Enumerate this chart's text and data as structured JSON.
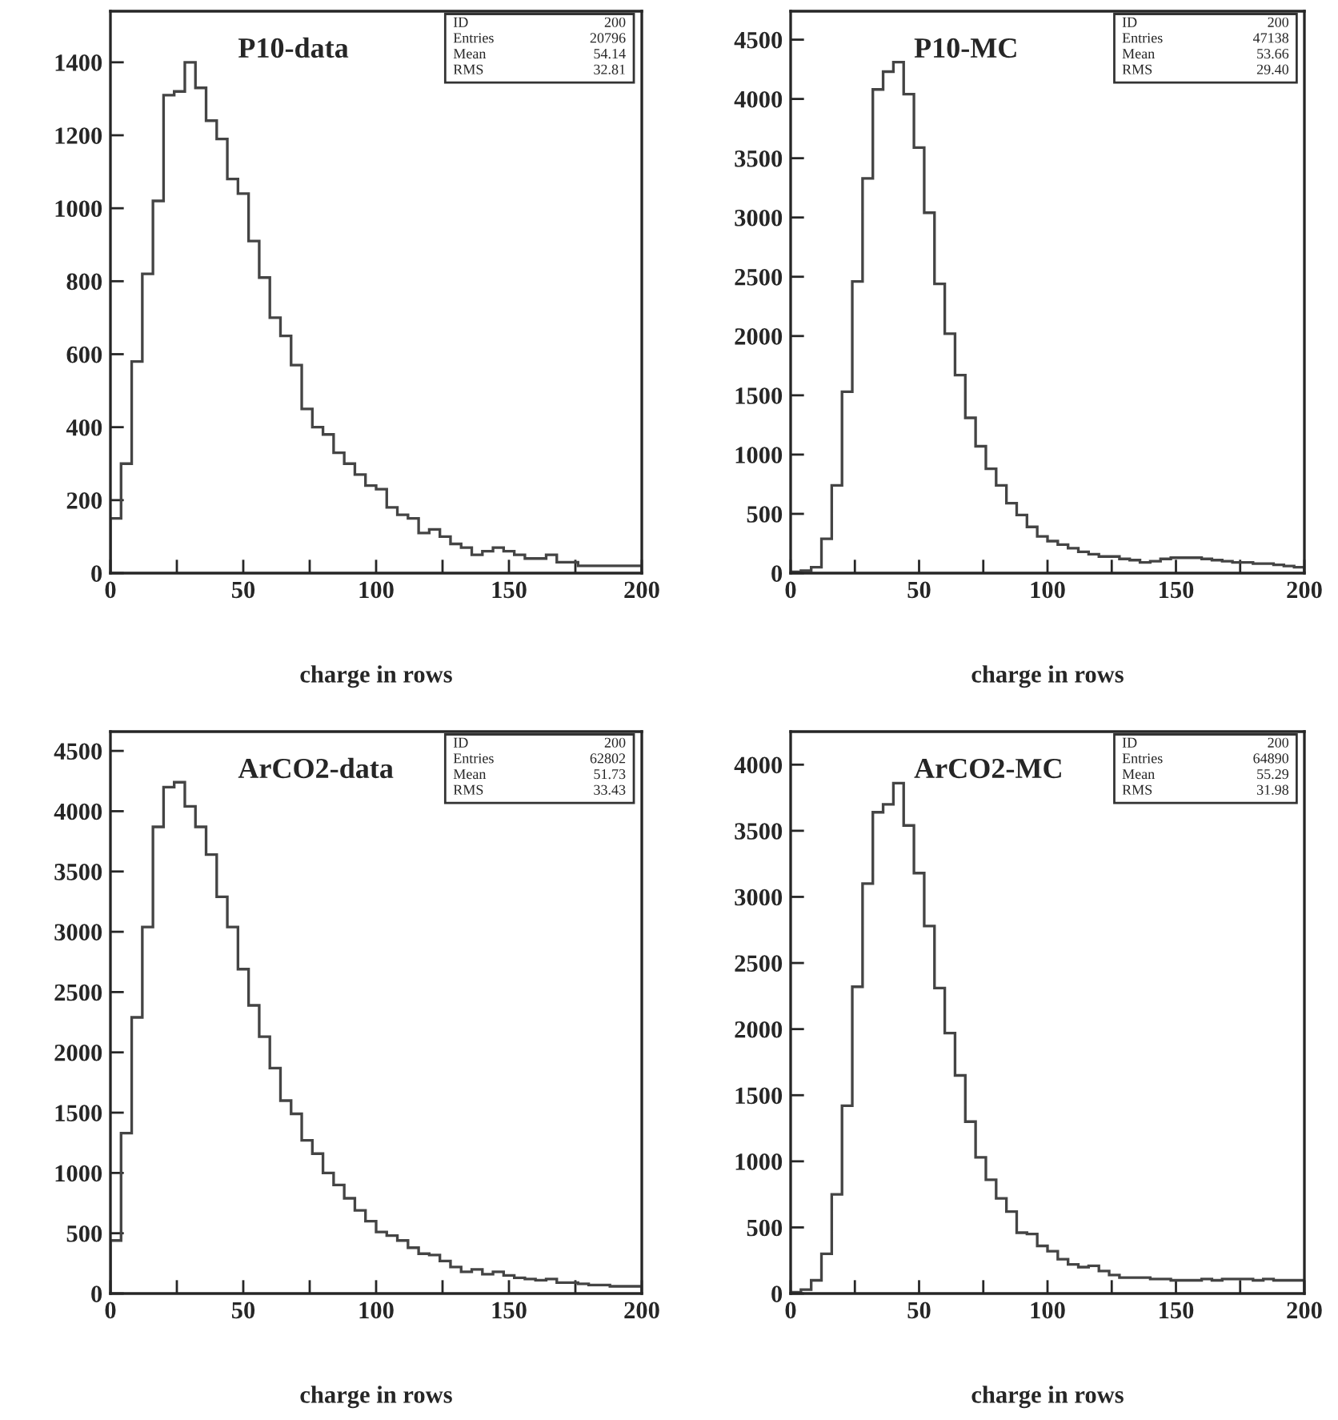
{
  "chart_data": [
    {
      "type": "histogram",
      "title": "P10-data",
      "xlabel": "charge in rows",
      "color": "#444444",
      "bins": [
        0,
        4,
        8,
        12,
        16,
        20,
        24,
        28,
        32,
        36,
        40,
        44,
        48,
        52,
        56,
        60,
        64,
        68,
        72,
        76,
        80,
        84,
        88,
        92,
        96,
        100,
        104,
        108,
        112,
        116,
        120,
        124,
        128,
        132,
        136,
        140,
        144,
        148,
        152,
        156,
        160,
        164,
        168,
        172,
        176,
        180,
        184,
        188,
        192,
        196,
        200
      ],
      "values": [
        150,
        300,
        580,
        820,
        1020,
        1310,
        1320,
        1400,
        1330,
        1240,
        1190,
        1080,
        1040,
        910,
        810,
        700,
        650,
        570,
        450,
        400,
        380,
        330,
        300,
        270,
        240,
        230,
        180,
        160,
        150,
        110,
        120,
        100,
        80,
        70,
        50,
        60,
        70,
        60,
        50,
        40,
        40,
        50,
        30,
        30,
        20,
        20,
        20,
        20,
        20,
        20
      ],
      "xlim": [
        0,
        200
      ],
      "ylim": [
        0,
        1540
      ],
      "xticks": [
        0,
        {
          "value": 25,
          "label": null
        },
        50,
        {
          "value": 75,
          "label": null
        },
        100,
        {
          "value": 125,
          "label": null
        },
        150,
        {
          "value": 175,
          "label": null
        },
        200
      ],
      "yticks": [
        0,
        200,
        400,
        600,
        800,
        1000,
        1200,
        1400
      ],
      "annotations": [
        "ID 200",
        "Entries 20796",
        "Mean 54.14",
        "RMS 32.81"
      ]
    },
    {
      "type": "histogram",
      "title": "P10-MC",
      "xlabel": "charge in rows",
      "color": "#444444",
      "bins": [
        0,
        4,
        8,
        12,
        16,
        20,
        24,
        28,
        32,
        36,
        40,
        44,
        48,
        52,
        56,
        60,
        64,
        68,
        72,
        76,
        80,
        84,
        88,
        92,
        96,
        100,
        104,
        108,
        112,
        116,
        120,
        124,
        128,
        132,
        136,
        140,
        144,
        148,
        152,
        156,
        160,
        164,
        168,
        172,
        176,
        180,
        184,
        188,
        192,
        196,
        200
      ],
      "values": [
        10,
        20,
        50,
        290,
        740,
        1530,
        2460,
        3330,
        4080,
        4230,
        4310,
        4040,
        3590,
        3040,
        2440,
        2020,
        1670,
        1310,
        1070,
        880,
        740,
        590,
        490,
        390,
        310,
        270,
        240,
        210,
        180,
        160,
        140,
        140,
        120,
        110,
        90,
        100,
        120,
        130,
        130,
        130,
        120,
        110,
        100,
        90,
        90,
        80,
        80,
        70,
        60,
        50
      ],
      "xlim": [
        0,
        200
      ],
      "ylim": [
        0,
        4740
      ],
      "xticks": [
        0,
        {
          "value": 25,
          "label": null
        },
        50,
        {
          "value": 75,
          "label": null
        },
        100,
        {
          "value": 125,
          "label": null
        },
        150,
        {
          "value": 175,
          "label": null
        },
        200
      ],
      "yticks": [
        0,
        500,
        1000,
        1500,
        2000,
        2500,
        3000,
        3500,
        4000,
        4500
      ],
      "annotations": [
        "ID 200",
        "Entries 47138",
        "Mean 53.66",
        "RMS 29.40"
      ]
    },
    {
      "type": "histogram",
      "title": "ArCO2-data",
      "xlabel": "charge in rows",
      "color": "#444444",
      "bins": [
        0,
        4,
        8,
        12,
        16,
        20,
        24,
        28,
        32,
        36,
        40,
        44,
        48,
        52,
        56,
        60,
        64,
        68,
        72,
        76,
        80,
        84,
        88,
        92,
        96,
        100,
        104,
        108,
        112,
        116,
        120,
        124,
        128,
        132,
        136,
        140,
        144,
        148,
        152,
        156,
        160,
        164,
        168,
        172,
        176,
        180,
        184,
        188,
        192,
        196,
        200
      ],
      "values": [
        440,
        1330,
        2290,
        3040,
        3870,
        4200,
        4240,
        4040,
        3870,
        3640,
        3290,
        3040,
        2690,
        2390,
        2130,
        1870,
        1600,
        1490,
        1270,
        1160,
        1000,
        900,
        790,
        690,
        600,
        510,
        480,
        440,
        380,
        330,
        320,
        270,
        220,
        180,
        200,
        160,
        180,
        150,
        130,
        120,
        110,
        120,
        90,
        90,
        80,
        70,
        70,
        60,
        60,
        60
      ],
      "xlim": [
        0,
        200
      ],
      "ylim": [
        0,
        4660
      ],
      "xticks": [
        0,
        {
          "value": 25,
          "label": null
        },
        50,
        {
          "value": 75,
          "label": null
        },
        100,
        {
          "value": 125,
          "label": null
        },
        150,
        {
          "value": 175,
          "label": null
        },
        200
      ],
      "yticks": [
        0,
        500,
        1000,
        1500,
        2000,
        2500,
        3000,
        3500,
        4000,
        4500
      ],
      "annotations": [
        "ID 200",
        "Entries 62802",
        "Mean 51.73",
        "RMS 33.43"
      ]
    },
    {
      "type": "histogram",
      "title": "ArCO2-MC",
      "xlabel": "charge in rows",
      "color": "#444444",
      "bins": [
        0,
        4,
        8,
        12,
        16,
        20,
        24,
        28,
        32,
        36,
        40,
        44,
        48,
        52,
        56,
        60,
        64,
        68,
        72,
        76,
        80,
        84,
        88,
        92,
        96,
        100,
        104,
        108,
        112,
        116,
        120,
        124,
        128,
        132,
        136,
        140,
        144,
        148,
        152,
        156,
        160,
        164,
        168,
        172,
        176,
        180,
        184,
        188,
        192,
        196,
        200
      ],
      "values": [
        10,
        30,
        100,
        300,
        750,
        1420,
        2320,
        3100,
        3640,
        3700,
        3860,
        3540,
        3180,
        2780,
        2310,
        1970,
        1650,
        1300,
        1030,
        860,
        720,
        620,
        460,
        450,
        360,
        320,
        260,
        220,
        200,
        210,
        170,
        140,
        120,
        120,
        120,
        110,
        110,
        100,
        100,
        100,
        110,
        100,
        110,
        110,
        110,
        100,
        110,
        100,
        100,
        100
      ],
      "xlim": [
        0,
        200
      ],
      "ylim": [
        0,
        4250
      ],
      "xticks": [
        0,
        {
          "value": 25,
          "label": null
        },
        50,
        {
          "value": 75,
          "label": null
        },
        100,
        {
          "value": 125,
          "label": null
        },
        150,
        {
          "value": 175,
          "label": null
        },
        200
      ],
      "yticks": [
        0,
        500,
        1000,
        1500,
        2000,
        2500,
        3000,
        3500,
        4000
      ],
      "annotations": [
        "ID 200",
        "Entries 64890",
        "Mean 55.29",
        "RMS 31.98"
      ]
    }
  ]
}
